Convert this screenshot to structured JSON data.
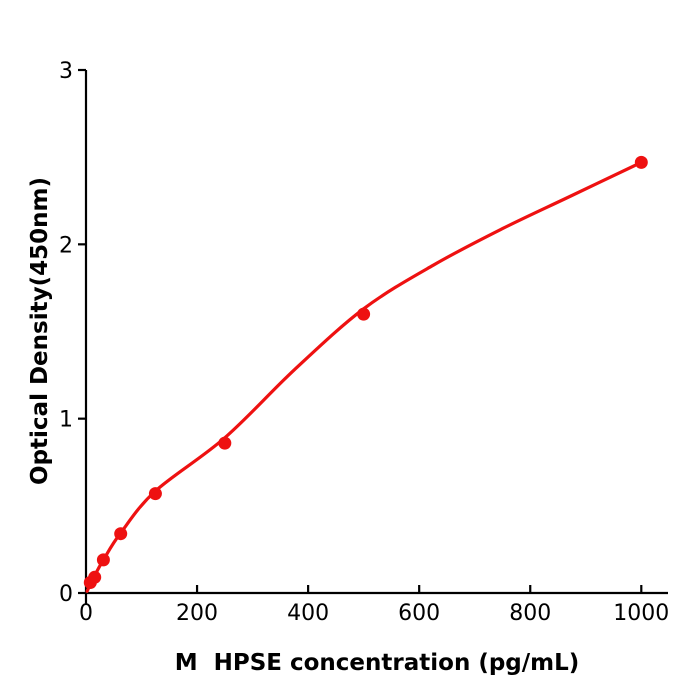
{
  "chart_data": {
    "type": "scatter",
    "title": "",
    "xlabel": "M  HPSE concentration (pg/mL)",
    "ylabel": "Optical Density(450nm)",
    "points": {
      "x": [
        7.8,
        15.6,
        31.25,
        62.5,
        125,
        250,
        500,
        1000
      ],
      "y": [
        0.06,
        0.09,
        0.19,
        0.34,
        0.57,
        0.86,
        1.6,
        2.47
      ]
    },
    "fit_curve": {
      "x": [
        2,
        7.8,
        15.6,
        31.25,
        62.5,
        125,
        250,
        375,
        500,
        625,
        750,
        875,
        1000
      ],
      "y": [
        0.01,
        0.05,
        0.1,
        0.19,
        0.345,
        0.585,
        0.89,
        1.28,
        1.63,
        1.88,
        2.09,
        2.28,
        2.47
      ]
    },
    "xlim": [
      0,
      1040
    ],
    "ylim": [
      0,
      3
    ],
    "x_ticks": [
      0,
      200,
      400,
      600,
      800,
      1000
    ],
    "x_tick_labels": [
      "0",
      "200",
      "400",
      "600",
      "800",
      "1000"
    ],
    "y_ticks": [
      0,
      1,
      2,
      3
    ],
    "y_tick_labels": [
      "0",
      "1",
      "2",
      "3"
    ],
    "grid": false,
    "legend_position": "none",
    "series_color": "#ee1111",
    "axis_color": "#000000",
    "background_color": "#ffffff",
    "marker": "circle"
  }
}
